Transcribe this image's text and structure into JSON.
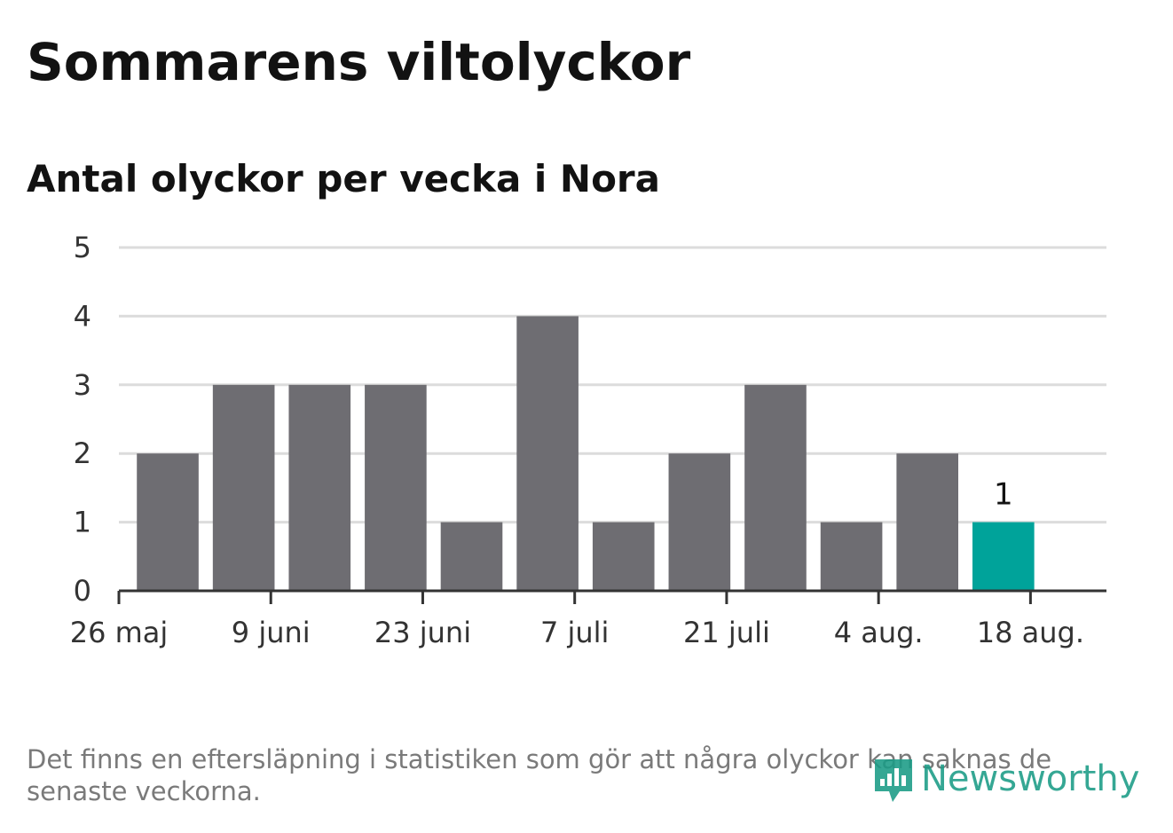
{
  "title": "Sommarens viltolyckor",
  "subtitle": "Antal olyckor per vecka i Nora",
  "note": "Det finns en eftersläpning i statistiken som gör att några olyckor kan saknas de senaste veckorna.",
  "logo": {
    "text": "Newsworthy",
    "icon": "bar-chart-speech-bubble-icon",
    "color": "#1a9c86"
  },
  "colors": {
    "bar": "#6e6d72",
    "highlight": "#00a39a",
    "grid": "#dcdcdc",
    "axis": "#333333"
  },
  "chart_data": {
    "type": "bar",
    "title": "Sommarens viltolyckor",
    "subtitle": "Antal olyckor per vecka i Nora",
    "xlabel": "",
    "ylabel": "",
    "x_axis": "date",
    "xlim": [
      "2019-05-26",
      "2019-08-25"
    ],
    "ylim": [
      0,
      5
    ],
    "y_ticks": [
      0,
      1,
      2,
      3,
      4,
      5
    ],
    "x_ticks": [
      "2019-05-26",
      "2019-06-09",
      "2019-06-23",
      "2019-07-07",
      "2019-07-21",
      "2019-08-04",
      "2019-08-18"
    ],
    "x_tick_labels": [
      "26 maj",
      "9 juni",
      "23 juni",
      "7 juli",
      "21 juli",
      "4 aug.",
      "18 aug."
    ],
    "grid": true,
    "legend": null,
    "bars": [
      {
        "week_start": "2019-05-27",
        "value": 2
      },
      {
        "week_start": "2019-06-03",
        "value": 3
      },
      {
        "week_start": "2019-06-10",
        "value": 3
      },
      {
        "week_start": "2019-06-17",
        "value": 3
      },
      {
        "week_start": "2019-06-24",
        "value": 1
      },
      {
        "week_start": "2019-07-01",
        "value": 4
      },
      {
        "week_start": "2019-07-08",
        "value": 1
      },
      {
        "week_start": "2019-07-15",
        "value": 2
      },
      {
        "week_start": "2019-07-22",
        "value": 3
      },
      {
        "week_start": "2019-07-29",
        "value": 1
      },
      {
        "week_start": "2019-08-05",
        "value": 2
      },
      {
        "week_start": "2019-08-12",
        "value": 1,
        "highlight": true,
        "label": "1"
      }
    ]
  }
}
